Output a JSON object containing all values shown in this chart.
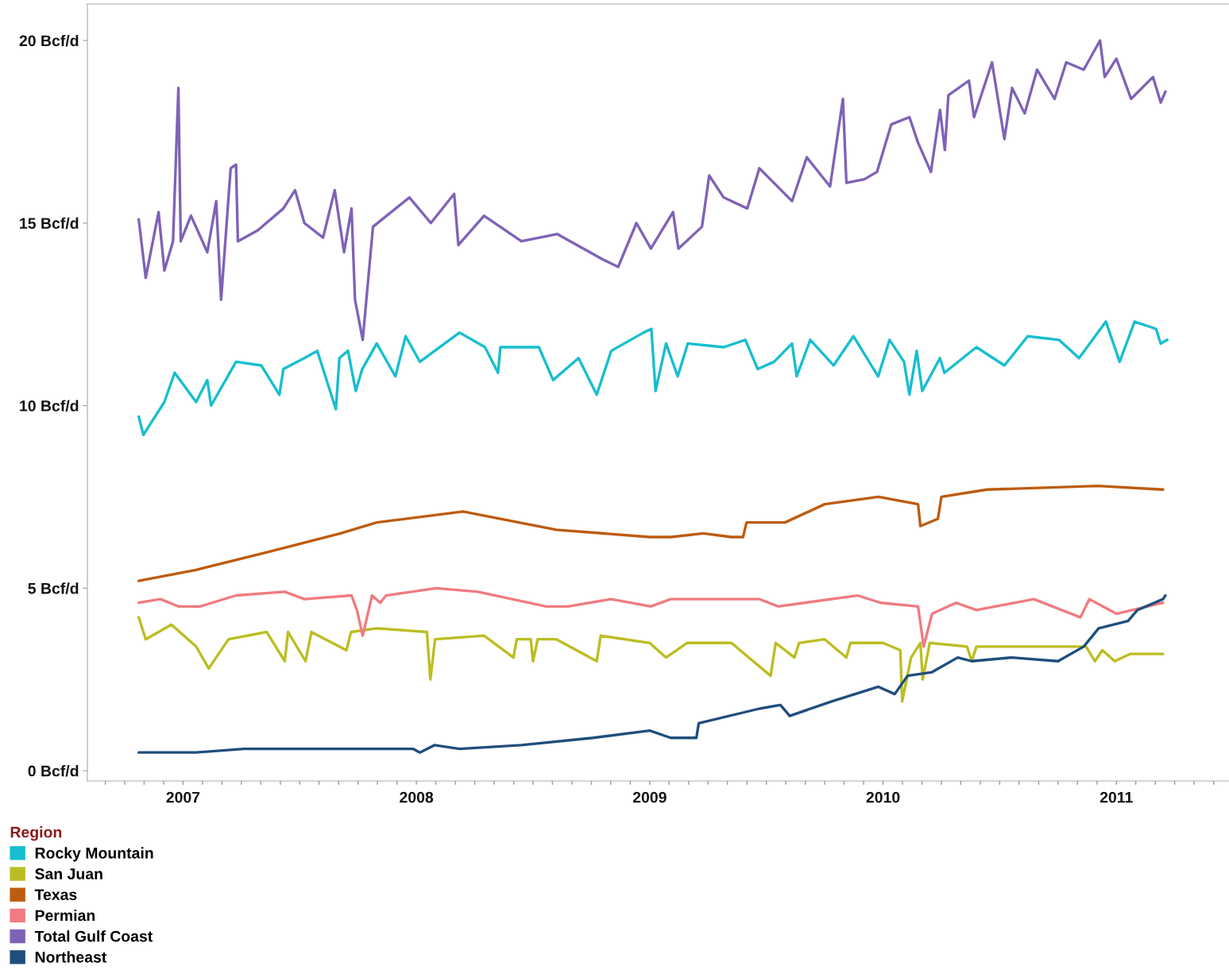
{
  "chart_data": {
    "type": "line",
    "legend_title": "Region",
    "legend": "bottom left",
    "grid": false,
    "marker": "none",
    "line_style": "solid",
    "xlim": [
      2006.59,
      2011.48
    ],
    "ylim": [
      -0.28,
      21.0
    ],
    "yticks": [
      {
        "value": 0,
        "label": "0 Bcf/d"
      },
      {
        "value": 5,
        "label": "5 Bcf/d"
      },
      {
        "value": 10,
        "label": "10 Bcf/d"
      },
      {
        "value": 15,
        "label": "15 Bcf/d"
      },
      {
        "value": 20,
        "label": "20 Bcf/d"
      }
    ],
    "xticks": [
      {
        "value": 2006.667,
        "label": null
      },
      {
        "value": 2006.75,
        "label": null
      },
      {
        "value": 2006.833,
        "label": null
      },
      {
        "value": 2006.917,
        "label": null
      },
      2007,
      {
        "value": 2007.083,
        "label": null
      },
      {
        "value": 2007.167,
        "label": null
      },
      {
        "value": 2007.25,
        "label": null
      },
      {
        "value": 2007.333,
        "label": null
      },
      {
        "value": 2007.417,
        "label": null
      },
      {
        "value": 2007.5,
        "label": null
      },
      {
        "value": 2007.583,
        "label": null
      },
      {
        "value": 2007.667,
        "label": null
      },
      {
        "value": 2007.75,
        "label": null
      },
      {
        "value": 2007.833,
        "label": null
      },
      {
        "value": 2007.917,
        "label": null
      },
      2008,
      {
        "value": 2008.083,
        "label": null
      },
      {
        "value": 2008.167,
        "label": null
      },
      {
        "value": 2008.25,
        "label": null
      },
      {
        "value": 2008.333,
        "label": null
      },
      {
        "value": 2008.417,
        "label": null
      },
      {
        "value": 2008.5,
        "label": null
      },
      {
        "value": 2008.583,
        "label": null
      },
      {
        "value": 2008.667,
        "label": null
      },
      {
        "value": 2008.75,
        "label": null
      },
      {
        "value": 2008.833,
        "label": null
      },
      {
        "value": 2008.917,
        "label": null
      },
      2009,
      {
        "value": 2009.083,
        "label": null
      },
      {
        "value": 2009.167,
        "label": null
      },
      {
        "value": 2009.25,
        "label": null
      },
      {
        "value": 2009.333,
        "label": null
      },
      {
        "value": 2009.417,
        "label": null
      },
      {
        "value": 2009.5,
        "label": null
      },
      {
        "value": 2009.583,
        "label": null
      },
      {
        "value": 2009.667,
        "label": null
      },
      {
        "value": 2009.75,
        "label": null
      },
      {
        "value": 2009.833,
        "label": null
      },
      {
        "value": 2009.917,
        "label": null
      },
      2010,
      {
        "value": 2010.083,
        "label": null
      },
      {
        "value": 2010.167,
        "label": null
      },
      {
        "value": 2010.25,
        "label": null
      },
      {
        "value": 2010.333,
        "label": null
      },
      {
        "value": 2010.417,
        "label": null
      },
      {
        "value": 2010.5,
        "label": null
      },
      {
        "value": 2010.583,
        "label": null
      },
      {
        "value": 2010.667,
        "label": null
      },
      {
        "value": 2010.75,
        "label": null
      },
      {
        "value": 2010.833,
        "label": null
      },
      {
        "value": 2010.917,
        "label": null
      },
      2011,
      {
        "value": 2011.083,
        "label": null
      },
      {
        "value": 2011.167,
        "label": null
      },
      {
        "value": 2011.25,
        "label": null
      },
      {
        "value": 2011.333,
        "label": null
      },
      {
        "value": 2011.417,
        "label": null
      }
    ],
    "series": [
      {
        "name": "Rocky Mountain",
        "color": "#17becf",
        "x": [
          2006.81,
          2006.83,
          2006.92,
          2006.964,
          2007.056,
          2007.104,
          2007.12,
          2007.227,
          2007.335,
          2007.413,
          2007.43,
          2007.52,
          2007.575,
          2007.655,
          2007.67,
          2007.707,
          2007.74,
          2007.768,
          2007.83,
          2007.91,
          2007.954,
          2008.015,
          2008.185,
          2008.294,
          2008.35,
          2008.36,
          2008.525,
          2008.586,
          2008.695,
          2008.773,
          2008.835,
          2008.974,
          2009.007,
          2009.025,
          2009.07,
          2009.12,
          2009.163,
          2009.317,
          2009.41,
          2009.463,
          2009.533,
          2009.61,
          2009.63,
          2009.688,
          2009.788,
          2009.873,
          2009.979,
          2010.028,
          2010.09,
          2010.113,
          2010.144,
          2010.168,
          2010.244,
          2010.263,
          2010.4,
          2010.52,
          2010.62,
          2010.754,
          2010.84,
          2010.955,
          2011.014,
          2011.078,
          2011.17,
          2011.19,
          2011.218
        ],
        "values": [
          9.7,
          9.2,
          10.1,
          10.9,
          10.1,
          10.7,
          10.0,
          11.2,
          11.1,
          10.3,
          11.0,
          11.3,
          11.5,
          9.9,
          11.3,
          11.5,
          10.4,
          11.0,
          11.7,
          10.8,
          11.9,
          11.2,
          12.0,
          11.6,
          10.9,
          11.6,
          11.6,
          10.7,
          11.3,
          10.3,
          11.5,
          12.0,
          12.1,
          10.4,
          11.7,
          10.8,
          11.7,
          11.6,
          11.8,
          11.0,
          11.2,
          11.7,
          10.8,
          11.8,
          11.1,
          11.9,
          10.8,
          11.8,
          11.2,
          10.3,
          11.5,
          10.4,
          11.3,
          10.9,
          11.6,
          11.1,
          11.9,
          11.8,
          11.3,
          12.3,
          11.2,
          12.3,
          12.1,
          11.7,
          11.8
        ]
      },
      {
        "name": "San Juan",
        "color": "#bcbd22",
        "x": [
          2006.81,
          2006.84,
          2006.95,
          2007.056,
          2007.11,
          2007.195,
          2007.358,
          2007.436,
          2007.45,
          2007.525,
          2007.55,
          2007.7,
          2007.72,
          2007.83,
          2008.045,
          2008.06,
          2008.08,
          2008.29,
          2008.416,
          2008.43,
          2008.49,
          2008.5,
          2008.52,
          2008.6,
          2008.773,
          2008.79,
          2009.0,
          2009.07,
          2009.16,
          2009.35,
          2009.518,
          2009.54,
          2009.62,
          2009.64,
          2009.75,
          2009.843,
          2009.86,
          2010.0,
          2010.074,
          2010.082,
          2010.12,
          2010.16,
          2010.17,
          2010.2,
          2010.36,
          2010.38,
          2010.4,
          2010.55,
          2010.87,
          2010.908,
          2010.94,
          2010.993,
          2011.06,
          2011.2
        ],
        "values": [
          4.2,
          3.6,
          4.0,
          3.4,
          2.8,
          3.6,
          3.8,
          3.0,
          3.8,
          3.0,
          3.8,
          3.3,
          3.8,
          3.9,
          3.8,
          2.5,
          3.6,
          3.7,
          3.1,
          3.6,
          3.6,
          3.0,
          3.6,
          3.6,
          3.0,
          3.7,
          3.5,
          3.1,
          3.5,
          3.5,
          2.6,
          3.5,
          3.1,
          3.5,
          3.6,
          3.1,
          3.5,
          3.5,
          3.3,
          1.9,
          3.1,
          3.5,
          2.5,
          3.5,
          3.4,
          3.0,
          3.4,
          3.4,
          3.4,
          3.0,
          3.3,
          3.0,
          3.2,
          3.2
        ]
      },
      {
        "name": "Texas",
        "color": "#bd5b0f",
        "x": [
          2006.81,
          2007.056,
          2007.37,
          2007.675,
          2007.83,
          2008.2,
          2008.6,
          2009.0,
          2009.09,
          2009.23,
          2009.35,
          2009.4,
          2009.415,
          2009.58,
          2009.75,
          2009.98,
          2010.15,
          2010.16,
          2010.235,
          2010.25,
          2010.445,
          2010.92,
          2011.2
        ],
        "values": [
          5.2,
          5.5,
          6.0,
          6.5,
          6.8,
          7.1,
          6.6,
          6.4,
          6.4,
          6.5,
          6.4,
          6.4,
          6.8,
          6.8,
          7.3,
          7.5,
          7.3,
          6.7,
          6.9,
          7.5,
          7.7,
          7.8,
          7.7
        ]
      },
      {
        "name": "Permian",
        "color": "#f07b80",
        "x": [
          2006.81,
          2006.903,
          2006.98,
          2007.073,
          2007.227,
          2007.436,
          2007.52,
          2007.722,
          2007.745,
          2007.77,
          2007.81,
          2007.845,
          2007.87,
          2008.085,
          2008.263,
          2008.556,
          2008.65,
          2008.834,
          2009.005,
          2009.09,
          2009.35,
          2009.47,
          2009.55,
          2009.89,
          2009.99,
          2010.15,
          2010.174,
          2010.21,
          2010.313,
          2010.4,
          2010.646,
          2010.846,
          2010.884,
          2011.0,
          2011.2
        ],
        "values": [
          4.6,
          4.7,
          4.5,
          4.5,
          4.8,
          4.9,
          4.7,
          4.8,
          4.4,
          3.7,
          4.8,
          4.6,
          4.8,
          5.0,
          4.9,
          4.5,
          4.5,
          4.7,
          4.5,
          4.7,
          4.7,
          4.7,
          4.5,
          4.8,
          4.6,
          4.5,
          3.4,
          4.3,
          4.6,
          4.4,
          4.7,
          4.2,
          4.7,
          4.3,
          4.6
        ]
      },
      {
        "name": "Total Gulf Coast",
        "color": "#7f62b6",
        "x": [
          2006.81,
          2006.84,
          2006.895,
          2006.92,
          2006.957,
          2006.98,
          2006.99,
          2007.034,
          2007.104,
          2007.142,
          2007.163,
          2007.204,
          2007.227,
          2007.235,
          2007.32,
          2007.43,
          2007.48,
          2007.52,
          2007.6,
          2007.65,
          2007.69,
          2007.722,
          2007.737,
          2007.77,
          2007.814,
          2007.97,
          2008.062,
          2008.162,
          2008.18,
          2008.29,
          2008.45,
          2008.603,
          2008.8,
          2008.865,
          2008.943,
          2009.005,
          2009.1,
          2009.123,
          2009.224,
          2009.255,
          2009.317,
          2009.418,
          2009.47,
          2009.61,
          2009.673,
          2009.773,
          2009.828,
          2009.843,
          2009.92,
          2009.974,
          2010.035,
          2010.113,
          2010.15,
          2010.205,
          2010.244,
          2010.265,
          2010.28,
          2010.368,
          2010.39,
          2010.467,
          2010.52,
          2010.553,
          2010.607,
          2010.66,
          2010.735,
          2010.785,
          2010.86,
          2010.93,
          2010.95,
          2011.0,
          2011.063,
          2011.157,
          2011.19,
          2011.21
        ],
        "values": [
          15.1,
          13.5,
          15.3,
          13.7,
          14.5,
          18.7,
          14.5,
          15.2,
          14.2,
          15.6,
          12.9,
          16.5,
          16.6,
          14.5,
          14.8,
          15.4,
          15.9,
          15.0,
          14.6,
          15.9,
          14.2,
          15.4,
          12.9,
          11.8,
          14.9,
          15.7,
          15.0,
          15.8,
          14.4,
          15.2,
          14.5,
          14.7,
          14.0,
          13.8,
          15.0,
          14.3,
          15.3,
          14.3,
          14.9,
          16.3,
          15.7,
          15.4,
          16.5,
          15.6,
          16.8,
          16.0,
          18.4,
          16.1,
          16.2,
          16.4,
          17.7,
          17.9,
          17.2,
          16.4,
          18.1,
          17.0,
          18.5,
          18.9,
          17.9,
          19.4,
          17.3,
          18.7,
          18.0,
          19.2,
          18.4,
          19.4,
          19.2,
          20.0,
          19.0,
          19.5,
          18.4,
          19.0,
          18.3,
          18.6
        ]
      },
      {
        "name": "Northeast",
        "color": "#1f4e7d",
        "x": [
          2006.81,
          2007.056,
          2007.26,
          2007.675,
          2007.985,
          2008.015,
          2008.077,
          2008.185,
          2008.45,
          2008.757,
          2009.0,
          2009.09,
          2009.2,
          2009.21,
          2009.47,
          2009.56,
          2009.6,
          2009.78,
          2009.98,
          2010.05,
          2010.105,
          2010.21,
          2010.32,
          2010.38,
          2010.55,
          2010.75,
          2010.86,
          2010.924,
          2011.05,
          2011.09,
          2011.2,
          2011.21
        ],
        "values": [
          0.5,
          0.5,
          0.6,
          0.6,
          0.6,
          0.5,
          0.7,
          0.6,
          0.7,
          0.9,
          1.1,
          0.9,
          0.9,
          1.3,
          1.7,
          1.8,
          1.5,
          1.9,
          2.3,
          2.1,
          2.6,
          2.7,
          3.1,
          3.0,
          3.1,
          3.0,
          3.4,
          3.9,
          4.1,
          4.4,
          4.7,
          4.8
        ]
      }
    ]
  }
}
